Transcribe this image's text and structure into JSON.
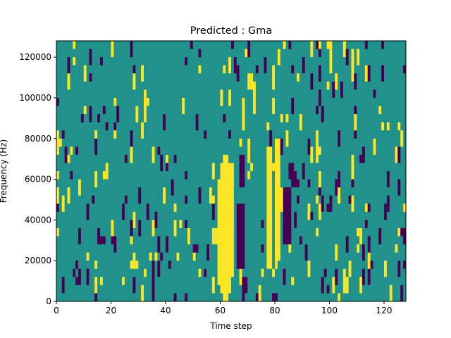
{
  "chart_data": {
    "type": "heatmap",
    "title": "Predicted : Gma",
    "xlabel": "Time step",
    "ylabel": "Frequency (Hz)",
    "xlim": [
      0,
      128
    ],
    "ylim": [
      0,
      128000
    ],
    "x_ticks": [
      {
        "value": 0,
        "label": "0"
      },
      {
        "value": 20,
        "label": "20"
      },
      {
        "value": 40,
        "label": "40"
      },
      {
        "value": 60,
        "label": "60"
      },
      {
        "value": 80,
        "label": "80"
      },
      {
        "value": 100,
        "label": "100"
      },
      {
        "value": 120,
        "label": "120"
      }
    ],
    "y_ticks": [
      {
        "value": 0,
        "label": "0"
      },
      {
        "value": 20000,
        "label": "20000"
      },
      {
        "value": 40000,
        "label": "40000"
      },
      {
        "value": 60000,
        "label": "60000"
      },
      {
        "value": 80000,
        "label": "80000"
      },
      {
        "value": 100000,
        "label": "100000"
      },
      {
        "value": 120000,
        "label": "120000"
      }
    ],
    "colors": {
      "low": "#440154",
      "mid": "#21918c",
      "high": "#fde725"
    },
    "background_value": "mid",
    "high_spans": [
      {
        "x": [
          60,
          64
        ],
        "y": [
          4000,
          68000
        ]
      },
      {
        "x": [
          61,
          63
        ],
        "y": [
          0,
          72000
        ]
      },
      {
        "x": [
          59,
          60
        ],
        "y": [
          8000,
          60000
        ]
      },
      {
        "x": [
          64,
          65
        ],
        "y": [
          12000,
          68000
        ]
      },
      {
        "x": [
          57,
          58
        ],
        "y": [
          28000,
          36000
        ]
      },
      {
        "x": [
          77,
          79
        ],
        "y": [
          16000,
          76000
        ]
      },
      {
        "x": [
          80,
          82
        ],
        "y": [
          20000,
          80000
        ]
      },
      {
        "x": [
          82,
          83
        ],
        "y": [
          44000,
          56000
        ]
      }
    ],
    "low_spans": [
      {
        "x": [
          66,
          69
        ],
        "y": [
          16000,
          48000
        ]
      },
      {
        "x": [
          67,
          69
        ],
        "y": [
          56000,
          72000
        ]
      },
      {
        "x": [
          83,
          86
        ],
        "y": [
          28000,
          56000
        ]
      },
      {
        "x": [
          85,
          87
        ],
        "y": [
          60000,
          68000
        ]
      },
      {
        "x": [
          68,
          70
        ],
        "y": [
          4000,
          12000
        ]
      },
      {
        "x": [
          79,
          81
        ],
        "y": [
          0,
          4000
        ]
      }
    ],
    "random_cells": {
      "seed": 7,
      "x_range": [
        0,
        128
      ],
      "y_range": [
        0,
        128000
      ],
      "cell_width": 1,
      "cell_height": 4000,
      "density": 0.08
    }
  }
}
